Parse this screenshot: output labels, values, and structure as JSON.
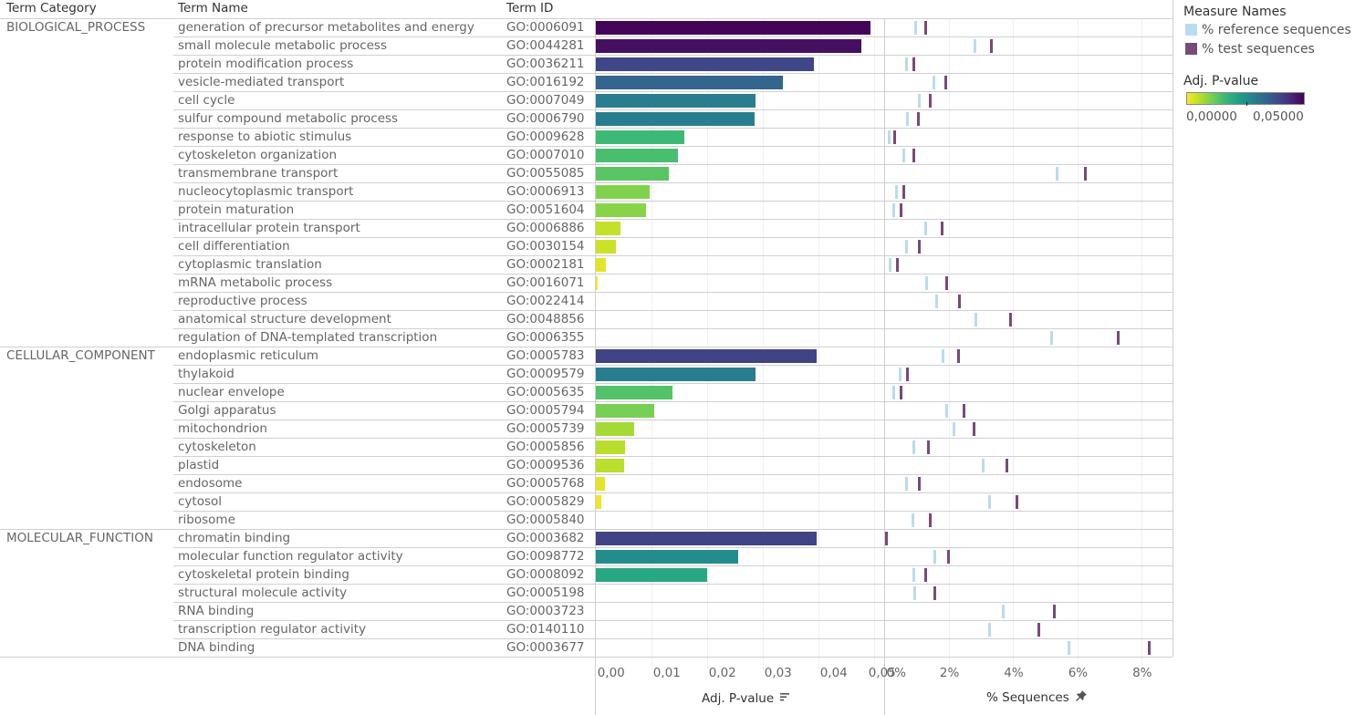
{
  "headers": {
    "term_category": "Term Category",
    "term_name": "Term Name",
    "term_id": "Term ID"
  },
  "legend": {
    "measure_title": "Measure Names",
    "measures": [
      {
        "label": "% reference sequences",
        "color": "#b9dcee"
      },
      {
        "label": "% test sequences",
        "color": "#784a78"
      }
    ],
    "pvalue_title": "Adj. P-value",
    "pvalue_min_label": "0,00000",
    "pvalue_max_label": "0,05000"
  },
  "axes": {
    "pvalue_title": "Adj. P-value",
    "pvalue_icon": "sort-icon",
    "sequences_title": "% Sequences",
    "sequences_icon": "pin-icon"
  },
  "chart_data": [
    {
      "type": "bar",
      "title": "Adj. P-value",
      "xlabel": "Adj. P-value",
      "xlim": [
        0,
        0.052
      ],
      "ticks": [
        0,
        0.01,
        0.02,
        0.03,
        0.04,
        0.05
      ],
      "tick_labels": [
        "0,00",
        "0,01",
        "0,02",
        "0,03",
        "0,04",
        "0,05"
      ],
      "color_scale": {
        "name": "viridis-reversed",
        "domain": [
          0,
          0.05
        ],
        "low_color": "#fde725",
        "high_color": "#440154"
      },
      "grid": true
    },
    {
      "type": "scatter",
      "title": "% Sequences",
      "xlabel": "% Sequences",
      "xlim": [
        0,
        9
      ],
      "ticks": [
        0,
        2,
        4,
        6,
        8
      ],
      "tick_labels": [
        "0%",
        "2%",
        "4%",
        "6%",
        "8%"
      ],
      "series": [
        {
          "name": "% reference sequences",
          "color": "#b9dcee"
        },
        {
          "name": "% test sequences",
          "color": "#784a78"
        }
      ],
      "grid": true
    }
  ],
  "categories": [
    {
      "name": "BIOLOGICAL_PROCESS",
      "rows": [
        {
          "term": "generation of precursor metabolites and energy",
          "id": "GO:0006091",
          "pvalue": 0.0494,
          "ref": 0.98,
          "test": 1.29
        },
        {
          "term": "small molecule metabolic process",
          "id": "GO:0044281",
          "pvalue": 0.0478,
          "ref": 2.8,
          "test": 3.31
        },
        {
          "term": "protein modification process",
          "id": "GO:0036211",
          "pvalue": 0.0392,
          "ref": 0.67,
          "test": 0.92
        },
        {
          "term": "vesicle-mediated transport",
          "id": "GO:0016192",
          "pvalue": 0.0337,
          "ref": 1.52,
          "test": 1.91
        },
        {
          "term": "cell cycle",
          "id": "GO:0007049",
          "pvalue": 0.0287,
          "ref": 1.07,
          "test": 1.43
        },
        {
          "term": "sulfur compound metabolic process",
          "id": "GO:0006790",
          "pvalue": 0.0286,
          "ref": 0.72,
          "test": 1.04
        },
        {
          "term": "response to abiotic stimulus",
          "id": "GO:0009628",
          "pvalue": 0.016,
          "ref": 0.13,
          "test": 0.3
        },
        {
          "term": "cytoskeleton organization",
          "id": "GO:0007010",
          "pvalue": 0.0148,
          "ref": 0.61,
          "test": 0.92
        },
        {
          "term": "transmembrane transport",
          "id": "GO:0055085",
          "pvalue": 0.0132,
          "ref": 5.38,
          "test": 6.24
        },
        {
          "term": "nucleocytoplasmic transport",
          "id": "GO:0006913",
          "pvalue": 0.0097,
          "ref": 0.36,
          "test": 0.61
        },
        {
          "term": "protein maturation",
          "id": "GO:0051604",
          "pvalue": 0.0091,
          "ref": 0.27,
          "test": 0.5
        },
        {
          "term": "intracellular protein transport",
          "id": "GO:0006886",
          "pvalue": 0.0045,
          "ref": 1.29,
          "test": 1.8
        },
        {
          "term": "cell differentiation",
          "id": "GO:0030154",
          "pvalue": 0.0037,
          "ref": 0.67,
          "test": 1.07
        },
        {
          "term": "cytoplasmic translation",
          "id": "GO:0002181",
          "pvalue": 0.0019,
          "ref": 0.18,
          "test": 0.41
        },
        {
          "term": "mRNA metabolic process",
          "id": "GO:0016071",
          "pvalue": 0.0004,
          "ref": 1.32,
          "test": 1.92
        },
        {
          "term": "reproductive process",
          "id": "GO:0022414",
          "pvalue": 0.0,
          "ref": 1.61,
          "test": 2.34
        },
        {
          "term": "anatomical structure development",
          "id": "GO:0048856",
          "pvalue": 0.0,
          "ref": 2.83,
          "test": 3.91
        },
        {
          "term": "regulation of DNA-templated transcription",
          "id": "GO:0006355",
          "pvalue": 0.0,
          "ref": 5.19,
          "test": 7.26
        }
      ]
    },
    {
      "name": "CELLULAR_COMPONENT",
      "rows": [
        {
          "term": "endoplasmic reticulum",
          "id": "GO:0005783",
          "pvalue": 0.0398,
          "ref": 1.83,
          "test": 2.29
        },
        {
          "term": "thylakoid",
          "id": "GO:0009579",
          "pvalue": 0.0287,
          "ref": 0.47,
          "test": 0.72
        },
        {
          "term": "nuclear envelope",
          "id": "GO:0005635",
          "pvalue": 0.0138,
          "ref": 0.27,
          "test": 0.5
        },
        {
          "term": "Golgi apparatus",
          "id": "GO:0005794",
          "pvalue": 0.0105,
          "ref": 1.92,
          "test": 2.46
        },
        {
          "term": "mitochondrion",
          "id": "GO:0005739",
          "pvalue": 0.0069,
          "ref": 2.15,
          "test": 2.77
        },
        {
          "term": "cytoskeleton",
          "id": "GO:0005856",
          "pvalue": 0.0053,
          "ref": 0.92,
          "test": 1.35
        },
        {
          "term": "plastid",
          "id": "GO:0009536",
          "pvalue": 0.0051,
          "ref": 3.08,
          "test": 3.82
        },
        {
          "term": "endosome",
          "id": "GO:0005768",
          "pvalue": 0.0017,
          "ref": 0.67,
          "test": 1.07
        },
        {
          "term": "cytosol",
          "id": "GO:0005829",
          "pvalue": 0.001,
          "ref": 3.28,
          "test": 4.13
        },
        {
          "term": "ribosome",
          "id": "GO:0005840",
          "pvalue": 0.0,
          "ref": 0.87,
          "test": 1.41
        }
      ]
    },
    {
      "name": "MOLECULAR_FUNCTION",
      "rows": [
        {
          "term": "chromatin binding",
          "id": "GO:0003682",
          "pvalue": 0.0398,
          "ref": 0.02,
          "test": 0.07
        },
        {
          "term": "molecular function regulator activity",
          "id": "GO:0098772",
          "pvalue": 0.0256,
          "ref": 1.55,
          "test": 2.0
        },
        {
          "term": "cytoskeletal protein binding",
          "id": "GO:0008092",
          "pvalue": 0.0201,
          "ref": 0.92,
          "test": 1.27
        },
        {
          "term": "structural molecule activity",
          "id": "GO:0005198",
          "pvalue": 0.0,
          "ref": 0.95,
          "test": 1.55
        },
        {
          "term": "RNA binding",
          "id": "GO:0003723",
          "pvalue": 0.0,
          "ref": 3.68,
          "test": 5.27
        },
        {
          "term": "transcription regulator activity",
          "id": "GO:0140110",
          "pvalue": 0.0,
          "ref": 3.28,
          "test": 4.81
        },
        {
          "term": "DNA binding",
          "id": "GO:0003677",
          "pvalue": 0.0,
          "ref": 5.75,
          "test": 8.23
        }
      ]
    }
  ]
}
